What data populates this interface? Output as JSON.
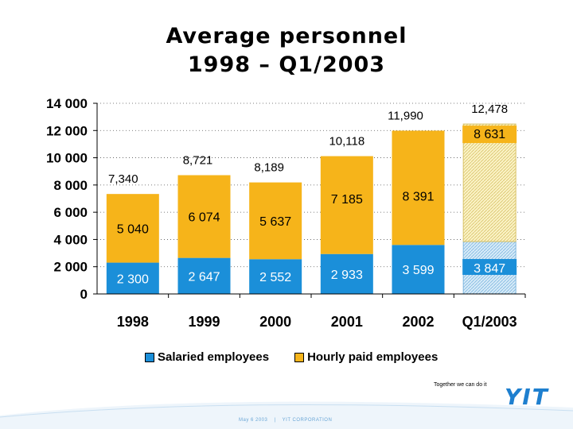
{
  "title": {
    "line1": "Average personnel",
    "line2": "1998 – Q1/2003"
  },
  "chart_data": {
    "type": "bar",
    "stacked": true,
    "title": "Average personnel 1998 – Q1/2003",
    "categories": [
      "1998",
      "1999",
      "2000",
      "2001",
      "2002",
      "Q1/2003"
    ],
    "ylim": [
      0,
      14000
    ],
    "yticks": [
      0,
      2000,
      4000,
      6000,
      8000,
      10000,
      12000,
      14000
    ],
    "ytick_labels": [
      "0",
      "2 000",
      "4 000",
      "6 000",
      "8 000",
      "10 000",
      "12 000",
      "14 000"
    ],
    "grid": "horizontal dotted",
    "series": [
      {
        "name": "Salaried employees",
        "values": [
          2300,
          2647,
          2552,
          2933,
          3599,
          3847
        ],
        "labels": [
          "2 300",
          "2 647",
          "2 552",
          "2 933",
          "3 599",
          "3 847"
        ]
      },
      {
        "name": "Hourly paid employees",
        "values": [
          5040,
          6074,
          5637,
          7185,
          8391,
          8631
        ],
        "labels": [
          "5 040",
          "6 074",
          "5 637",
          "7 185",
          "8 391",
          "8 631"
        ]
      }
    ],
    "totals": [
      7340,
      8721,
      8189,
      10118,
      11990,
      12478
    ],
    "total_labels": [
      "7,340",
      "8,721",
      "8,189",
      "10,118",
      "11,990",
      "12,478"
    ],
    "legend": "bottom"
  },
  "colors": {
    "salaried": "#1b8fd9",
    "hourly": "#f6b41a",
    "salaried_hatched": "#cfe6f6",
    "hourly_hatched": "#fbf0b8",
    "brand": "#1e7fcf"
  },
  "footer": {
    "tagline": "Together we can do it",
    "logo": "YIT",
    "date": "May 6 2003",
    "separator": "|",
    "company": "YIT CORPORATION"
  }
}
